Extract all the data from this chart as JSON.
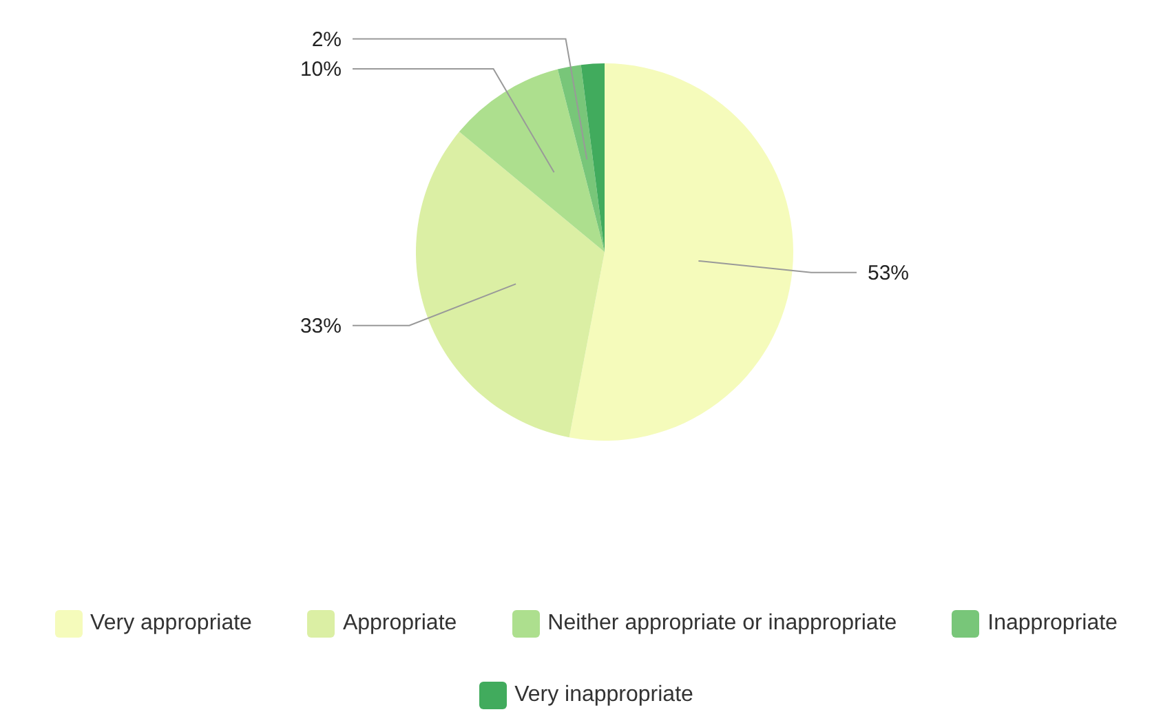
{
  "chart_data": {
    "type": "pie",
    "categories": [
      "Very appropriate",
      "Appropriate",
      "Neither appropriate or inappropriate",
      "Inappropriate",
      "Very inappropriate"
    ],
    "values": [
      53,
      33,
      10,
      2,
      2
    ],
    "colors": [
      "#f5fbbb",
      "#dbefa4",
      "#addf8e",
      "#78c679",
      "#41ab5d"
    ],
    "value_labels": [
      "53%",
      "33%",
      "10%",
      "2%",
      null
    ],
    "legend": "bottom"
  }
}
